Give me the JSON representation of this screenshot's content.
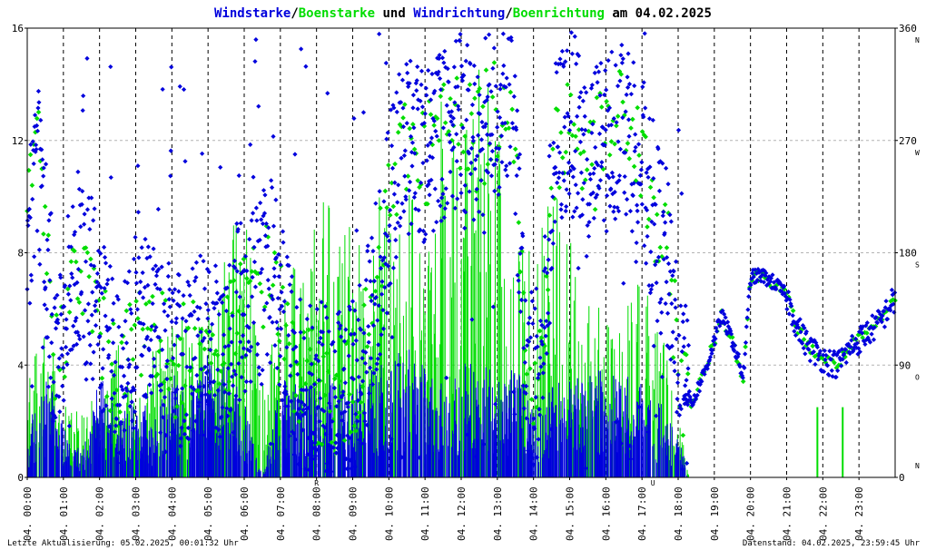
{
  "chart_data": {
    "type": "scatter",
    "title": {
      "part1": "Windstarke",
      "sep1": "/",
      "part2": "Boenstarke",
      "part3": " und ",
      "part4": "Windrichtung",
      "sep2": "/",
      "part5": "Boenrichtung",
      "part6": " am 04.02.2025"
    },
    "colors": {
      "wind": "#0000dd",
      "gust": "#00dd00",
      "axis": "#000000",
      "grid": "#b4b4b4",
      "marker": "#dd0000",
      "title_black": "#000000"
    },
    "x_ticks": [
      "04. 00:00",
      "04. 01:00",
      "04. 02:00",
      "04. 03:00",
      "04. 04:00",
      "04. 05:00",
      "04. 06:00",
      "04. 07:00",
      "04. 08:00",
      "04. 09:00",
      "04. 10:00",
      "04. 11:00",
      "04. 12:00",
      "04. 13:00",
      "04. 14:00",
      "04. 15:00",
      "04. 16:00",
      "04. 17:00",
      "04. 18:00",
      "04. 19:00",
      "04. 20:00",
      "04. 21:00",
      "04. 22:00",
      "04. 23:00"
    ],
    "xlim": [
      0,
      24
    ],
    "ylim_left": [
      0,
      16
    ],
    "yticks_left": [
      "0",
      "4",
      "8",
      "12",
      "16"
    ],
    "ylim_right": [
      0,
      360
    ],
    "yticks_right": [
      "0",
      "90",
      "180",
      "270",
      "360"
    ],
    "direction_labels": [
      "N",
      "O",
      "S",
      "W",
      "N"
    ],
    "grid": true,
    "red_markers": [
      {
        "label": "R",
        "x": 8.0
      },
      {
        "label": "U",
        "x": 17.3
      }
    ],
    "wind_speed_envelope": [
      [
        0.0,
        1.5
      ],
      [
        0.5,
        3.5
      ],
      [
        1.0,
        1.8
      ],
      [
        1.5,
        0.8
      ],
      [
        2.0,
        3.5
      ],
      [
        2.5,
        2.0
      ],
      [
        3.0,
        3.0
      ],
      [
        3.5,
        1.8
      ],
      [
        4.0,
        3.5
      ],
      [
        4.5,
        3.0
      ],
      [
        5.0,
        4.0
      ],
      [
        5.5,
        3.8
      ],
      [
        6.0,
        2.5
      ],
      [
        6.5,
        0.0
      ],
      [
        7.0,
        3.2
      ],
      [
        7.5,
        3.0
      ],
      [
        8.0,
        3.2
      ],
      [
        8.5,
        3.5
      ],
      [
        9.0,
        3.0
      ],
      [
        9.5,
        3.5
      ],
      [
        10.0,
        3.8
      ],
      [
        10.5,
        4.5
      ],
      [
        11.0,
        3.5
      ],
      [
        11.5,
        3.0
      ],
      [
        12.0,
        3.8
      ],
      [
        12.5,
        4.0
      ],
      [
        13.0,
        3.5
      ],
      [
        13.5,
        3.8
      ],
      [
        14.0,
        2.2
      ],
      [
        14.5,
        3.0
      ],
      [
        15.0,
        3.2
      ],
      [
        15.5,
        3.5
      ],
      [
        16.0,
        3.5
      ],
      [
        16.5,
        3.5
      ],
      [
        17.0,
        3.0
      ],
      [
        17.5,
        2.5
      ],
      [
        18.0,
        1.5
      ],
      [
        18.3,
        0.0
      ]
    ],
    "gust_speed_envelope": [
      [
        0.0,
        3.0
      ],
      [
        0.5,
        5.0
      ],
      [
        1.0,
        2.5
      ],
      [
        1.5,
        2.0
      ],
      [
        2.0,
        3.0
      ],
      [
        2.5,
        4.5
      ],
      [
        3.0,
        2.5
      ],
      [
        3.5,
        4.0
      ],
      [
        4.0,
        5.0
      ],
      [
        4.5,
        5.0
      ],
      [
        5.0,
        5.0
      ],
      [
        5.5,
        7.0
      ],
      [
        6.0,
        9.8
      ],
      [
        6.5,
        3.0
      ],
      [
        7.0,
        5.5
      ],
      [
        7.5,
        7.0
      ],
      [
        8.0,
        8.0
      ],
      [
        8.5,
        9.5
      ],
      [
        9.0,
        7.5
      ],
      [
        9.5,
        9.0
      ],
      [
        10.0,
        8.5
      ],
      [
        10.5,
        9.5
      ],
      [
        11.0,
        8.5
      ],
      [
        11.5,
        12.8
      ],
      [
        12.0,
        10.0
      ],
      [
        12.5,
        13.0
      ],
      [
        13.0,
        11.5
      ],
      [
        13.5,
        7.5
      ],
      [
        14.0,
        7.5
      ],
      [
        14.5,
        9.0
      ],
      [
        15.0,
        8.0
      ],
      [
        15.5,
        6.0
      ],
      [
        16.0,
        5.0
      ],
      [
        16.5,
        5.0
      ],
      [
        17.0,
        6.5
      ],
      [
        17.5,
        5.0
      ],
      [
        18.0,
        2.0
      ],
      [
        18.3,
        0.0
      ],
      [
        21.8,
        2.0
      ],
      [
        22.5,
        2.5
      ]
    ],
    "direction_trend": [
      [
        0.0,
        200
      ],
      [
        0.3,
        260
      ],
      [
        0.8,
        90
      ],
      [
        1.3,
        160
      ],
      [
        1.8,
        150
      ],
      [
        2.2,
        100
      ],
      [
        2.6,
        80
      ],
      [
        3.0,
        120
      ],
      [
        3.4,
        130
      ],
      [
        3.8,
        100
      ],
      [
        4.2,
        90
      ],
      [
        4.6,
        110
      ],
      [
        5.0,
        100
      ],
      [
        5.4,
        90
      ],
      [
        5.8,
        130
      ],
      [
        6.3,
        150
      ],
      [
        6.8,
        170
      ],
      [
        7.2,
        100
      ],
      [
        7.6,
        80
      ],
      [
        8.1,
        70
      ],
      [
        8.6,
        60
      ],
      [
        9.0,
        70
      ],
      [
        9.5,
        120
      ],
      [
        10.0,
        220
      ],
      [
        10.5,
        270
      ],
      [
        11.0,
        260
      ],
      [
        11.5,
        280
      ],
      [
        12.0,
        290
      ],
      [
        12.5,
        270
      ],
      [
        13.0,
        300
      ],
      [
        13.4,
        320
      ],
      [
        13.8,
        90
      ],
      [
        14.2,
        80
      ],
      [
        14.6,
        260
      ],
      [
        15.0,
        290
      ],
      [
        15.5,
        250
      ],
      [
        16.0,
        270
      ],
      [
        16.5,
        290
      ],
      [
        17.0,
        250
      ],
      [
        17.4,
        200
      ],
      [
        17.8,
        160
      ],
      [
        18.1,
        70
      ],
      [
        18.4,
        60
      ],
      [
        18.8,
        90
      ],
      [
        19.2,
        130
      ],
      [
        19.5,
        110
      ],
      [
        19.8,
        80
      ],
      [
        20.0,
        160
      ],
      [
        20.3,
        162
      ],
      [
        20.7,
        155
      ],
      [
        21.0,
        145
      ],
      [
        21.3,
        120
      ],
      [
        21.6,
        105
      ],
      [
        22.0,
        95
      ],
      [
        22.4,
        90
      ],
      [
        22.8,
        105
      ],
      [
        23.2,
        115
      ],
      [
        23.6,
        125
      ],
      [
        23.9,
        140
      ]
    ]
  },
  "footer": {
    "left": "Letzte Aktualisierung: 05.02.2025, 00:01:32 Uhr",
    "right": "Datenstand: 04.02.2025, 23:59:45 Uhr"
  }
}
